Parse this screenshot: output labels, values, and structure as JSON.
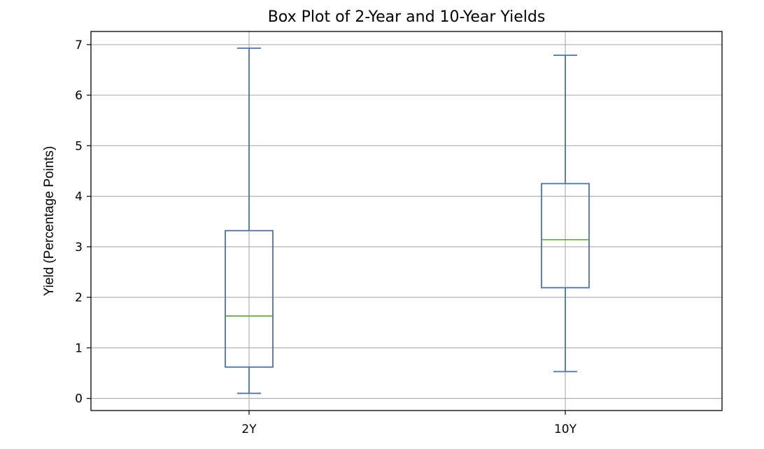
{
  "chart_data": {
    "type": "box",
    "title": "Box Plot of 2-Year and 10-Year Yields",
    "xlabel": "",
    "ylabel": "Yield (Percentage Points)",
    "categories": [
      "2Y",
      "10Y"
    ],
    "ylim": [
      -0.24,
      7.26
    ],
    "yticks": [
      0,
      1,
      2,
      3,
      4,
      5,
      6,
      7
    ],
    "grid": true,
    "boxes": [
      {
        "label": "2Y",
        "whisker_low": 0.1,
        "q1": 0.62,
        "median": 1.63,
        "q3": 3.32,
        "whisker_high": 6.93
      },
      {
        "label": "10Y",
        "whisker_low": 0.53,
        "q1": 2.19,
        "median": 3.14,
        "q3": 4.25,
        "whisker_high": 6.79
      }
    ],
    "colors": {
      "box": "#4c72b0",
      "median": "#55a630",
      "grid": "#b0b0b0",
      "frame": "#000000"
    }
  }
}
